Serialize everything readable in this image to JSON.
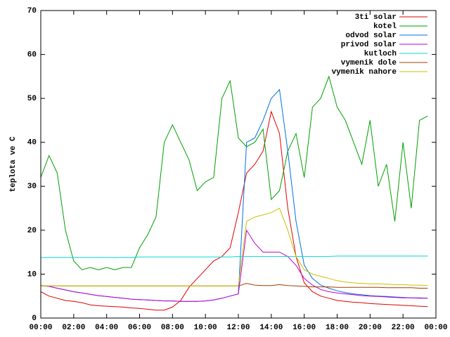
{
  "chart_data": {
    "type": "line",
    "ylabel": "teplota ve C",
    "x": [
      0,
      0.5,
      1,
      1.5,
      2,
      2.5,
      3,
      3.5,
      4,
      4.5,
      5,
      5.5,
      6,
      6.5,
      7,
      7.5,
      8,
      8.5,
      9,
      9.5,
      10,
      10.5,
      11,
      11.5,
      12,
      12.5,
      13,
      13.5,
      14,
      14.5,
      15,
      15.5,
      16,
      16.5,
      17,
      17.5,
      18,
      18.5,
      19,
      19.5,
      20,
      20.5,
      21,
      21.5,
      22,
      22.5,
      23,
      23.5
    ],
    "xlim": [
      0,
      24
    ],
    "xticks": [
      {
        "value": 0,
        "label": "00:00"
      },
      {
        "value": 2,
        "label": "02:00"
      },
      {
        "value": 4,
        "label": "04:00"
      },
      {
        "value": 6,
        "label": "06:00"
      },
      {
        "value": 8,
        "label": "08:00"
      },
      {
        "value": 10,
        "label": "10:00"
      },
      {
        "value": 12,
        "label": "12:00"
      },
      {
        "value": 14,
        "label": "14:00"
      },
      {
        "value": 16,
        "label": "16:00"
      },
      {
        "value": 18,
        "label": "18:00"
      },
      {
        "value": 20,
        "label": "20:00"
      },
      {
        "value": 22,
        "label": "22:00"
      },
      {
        "value": 24,
        "label": "00:00"
      }
    ],
    "ylim": [
      0,
      70
    ],
    "yticks": [
      0,
      10,
      20,
      30,
      40,
      50,
      60,
      70
    ],
    "legend": "top-right",
    "series": [
      {
        "name": "3ti solar",
        "color": "#e00000",
        "values": [
          6,
          5,
          4.5,
          4,
          3.8,
          3.5,
          3,
          2.8,
          2.7,
          2.6,
          2.5,
          2.3,
          2.2,
          2,
          1.8,
          1.8,
          2.5,
          4,
          7,
          9,
          11,
          13,
          14,
          16,
          24,
          33,
          35,
          38,
          47,
          42,
          25,
          14,
          8,
          6,
          5,
          4.5,
          4,
          3.8,
          3.6,
          3.5,
          3.3,
          3.2,
          3.1,
          3,
          2.9,
          2.8,
          2.7,
          2.6
        ]
      },
      {
        "name": "kotel",
        "color": "#00a000",
        "values": [
          32,
          37,
          33,
          20,
          13,
          11,
          11.5,
          11,
          11.5,
          11,
          11.5,
          11.5,
          16,
          19,
          23,
          40,
          44,
          40,
          36,
          29,
          31,
          32,
          50,
          54,
          41,
          39,
          40,
          43,
          27,
          29,
          38,
          42,
          32,
          48,
          50,
          55,
          48,
          45,
          40,
          35,
          45,
          30,
          35,
          22,
          40,
          25,
          45,
          46
        ]
      },
      {
        "name": "odvod solar",
        "color": "#0070e0",
        "values": [
          7.4,
          7.2,
          6.8,
          6.4,
          6,
          5.7,
          5.4,
          5.1,
          4.9,
          4.7,
          4.5,
          4.3,
          4.2,
          4.1,
          4,
          3.9,
          3.9,
          3.8,
          3.8,
          3.8,
          3.9,
          4.1,
          4.5,
          5,
          5.5,
          40,
          41,
          45,
          50,
          52,
          38,
          22,
          12,
          9,
          7.5,
          6.8,
          6.2,
          5.8,
          5.5,
          5.3,
          5.1,
          5,
          4.9,
          4.8,
          4.7,
          4.6,
          4.6,
          4.5
        ]
      },
      {
        "name": "privod solar",
        "color": "#c000d0",
        "values": [
          7.4,
          7.2,
          6.8,
          6.4,
          6,
          5.7,
          5.4,
          5.1,
          4.9,
          4.7,
          4.5,
          4.3,
          4.2,
          4.1,
          4,
          3.9,
          3.9,
          3.8,
          3.8,
          3.8,
          3.9,
          4.1,
          4.5,
          5,
          5.5,
          20,
          17,
          15,
          15,
          15,
          14,
          12,
          9,
          7.5,
          6.5,
          6,
          5.7,
          5.5,
          5.3,
          5.1,
          5,
          4.9,
          4.8,
          4.7,
          4.6,
          4.6,
          4.5,
          4.5
        ]
      },
      {
        "name": "kutloch",
        "color": "#00d8d8",
        "values": [
          13.8,
          13.8,
          13.8,
          13.8,
          13.8,
          13.8,
          13.8,
          13.8,
          13.8,
          13.8,
          13.8,
          13.8,
          13.9,
          13.9,
          13.9,
          13.9,
          13.9,
          13.9,
          13.9,
          13.9,
          13.9,
          13.9,
          13.9,
          13.9,
          14,
          14,
          14,
          14,
          14,
          14,
          14,
          14,
          14,
          14,
          14,
          14,
          14.1,
          14.1,
          14.1,
          14.1,
          14.1,
          14.1,
          14.1,
          14.1,
          14.1,
          14.1,
          14.1,
          14.1
        ]
      },
      {
        "name": "vymenik dole",
        "color": "#a04000",
        "values": [
          7.3,
          7.3,
          7.3,
          7.3,
          7.3,
          7.3,
          7.3,
          7.3,
          7.3,
          7.3,
          7.3,
          7.3,
          7.3,
          7.3,
          7.3,
          7.3,
          7.3,
          7.3,
          7.3,
          7.3,
          7.3,
          7.3,
          7.3,
          7.3,
          7.3,
          7.9,
          7.5,
          7.4,
          7.4,
          7.6,
          7.4,
          7.3,
          7.2,
          7.1,
          7.1,
          7.1,
          7,
          7,
          7,
          7,
          7,
          7,
          6.9,
          6.9,
          6.9,
          6.9,
          6.8,
          6.8
        ]
      },
      {
        "name": "vymenik nahore",
        "color": "#c8c000",
        "values": [
          7.3,
          7.3,
          7.3,
          7.3,
          7.3,
          7.3,
          7.3,
          7.3,
          7.3,
          7.3,
          7.3,
          7.3,
          7.3,
          7.3,
          7.3,
          7.3,
          7.3,
          7.3,
          7.3,
          7.3,
          7.3,
          7.3,
          7.3,
          7.3,
          7.3,
          22,
          23,
          23.5,
          24,
          25,
          20,
          14,
          11,
          10,
          9.5,
          9,
          8.5,
          8.2,
          8,
          7.9,
          7.8,
          7.8,
          7.7,
          7.6,
          7.6,
          7.5,
          7.5,
          7.4
        ]
      }
    ]
  }
}
